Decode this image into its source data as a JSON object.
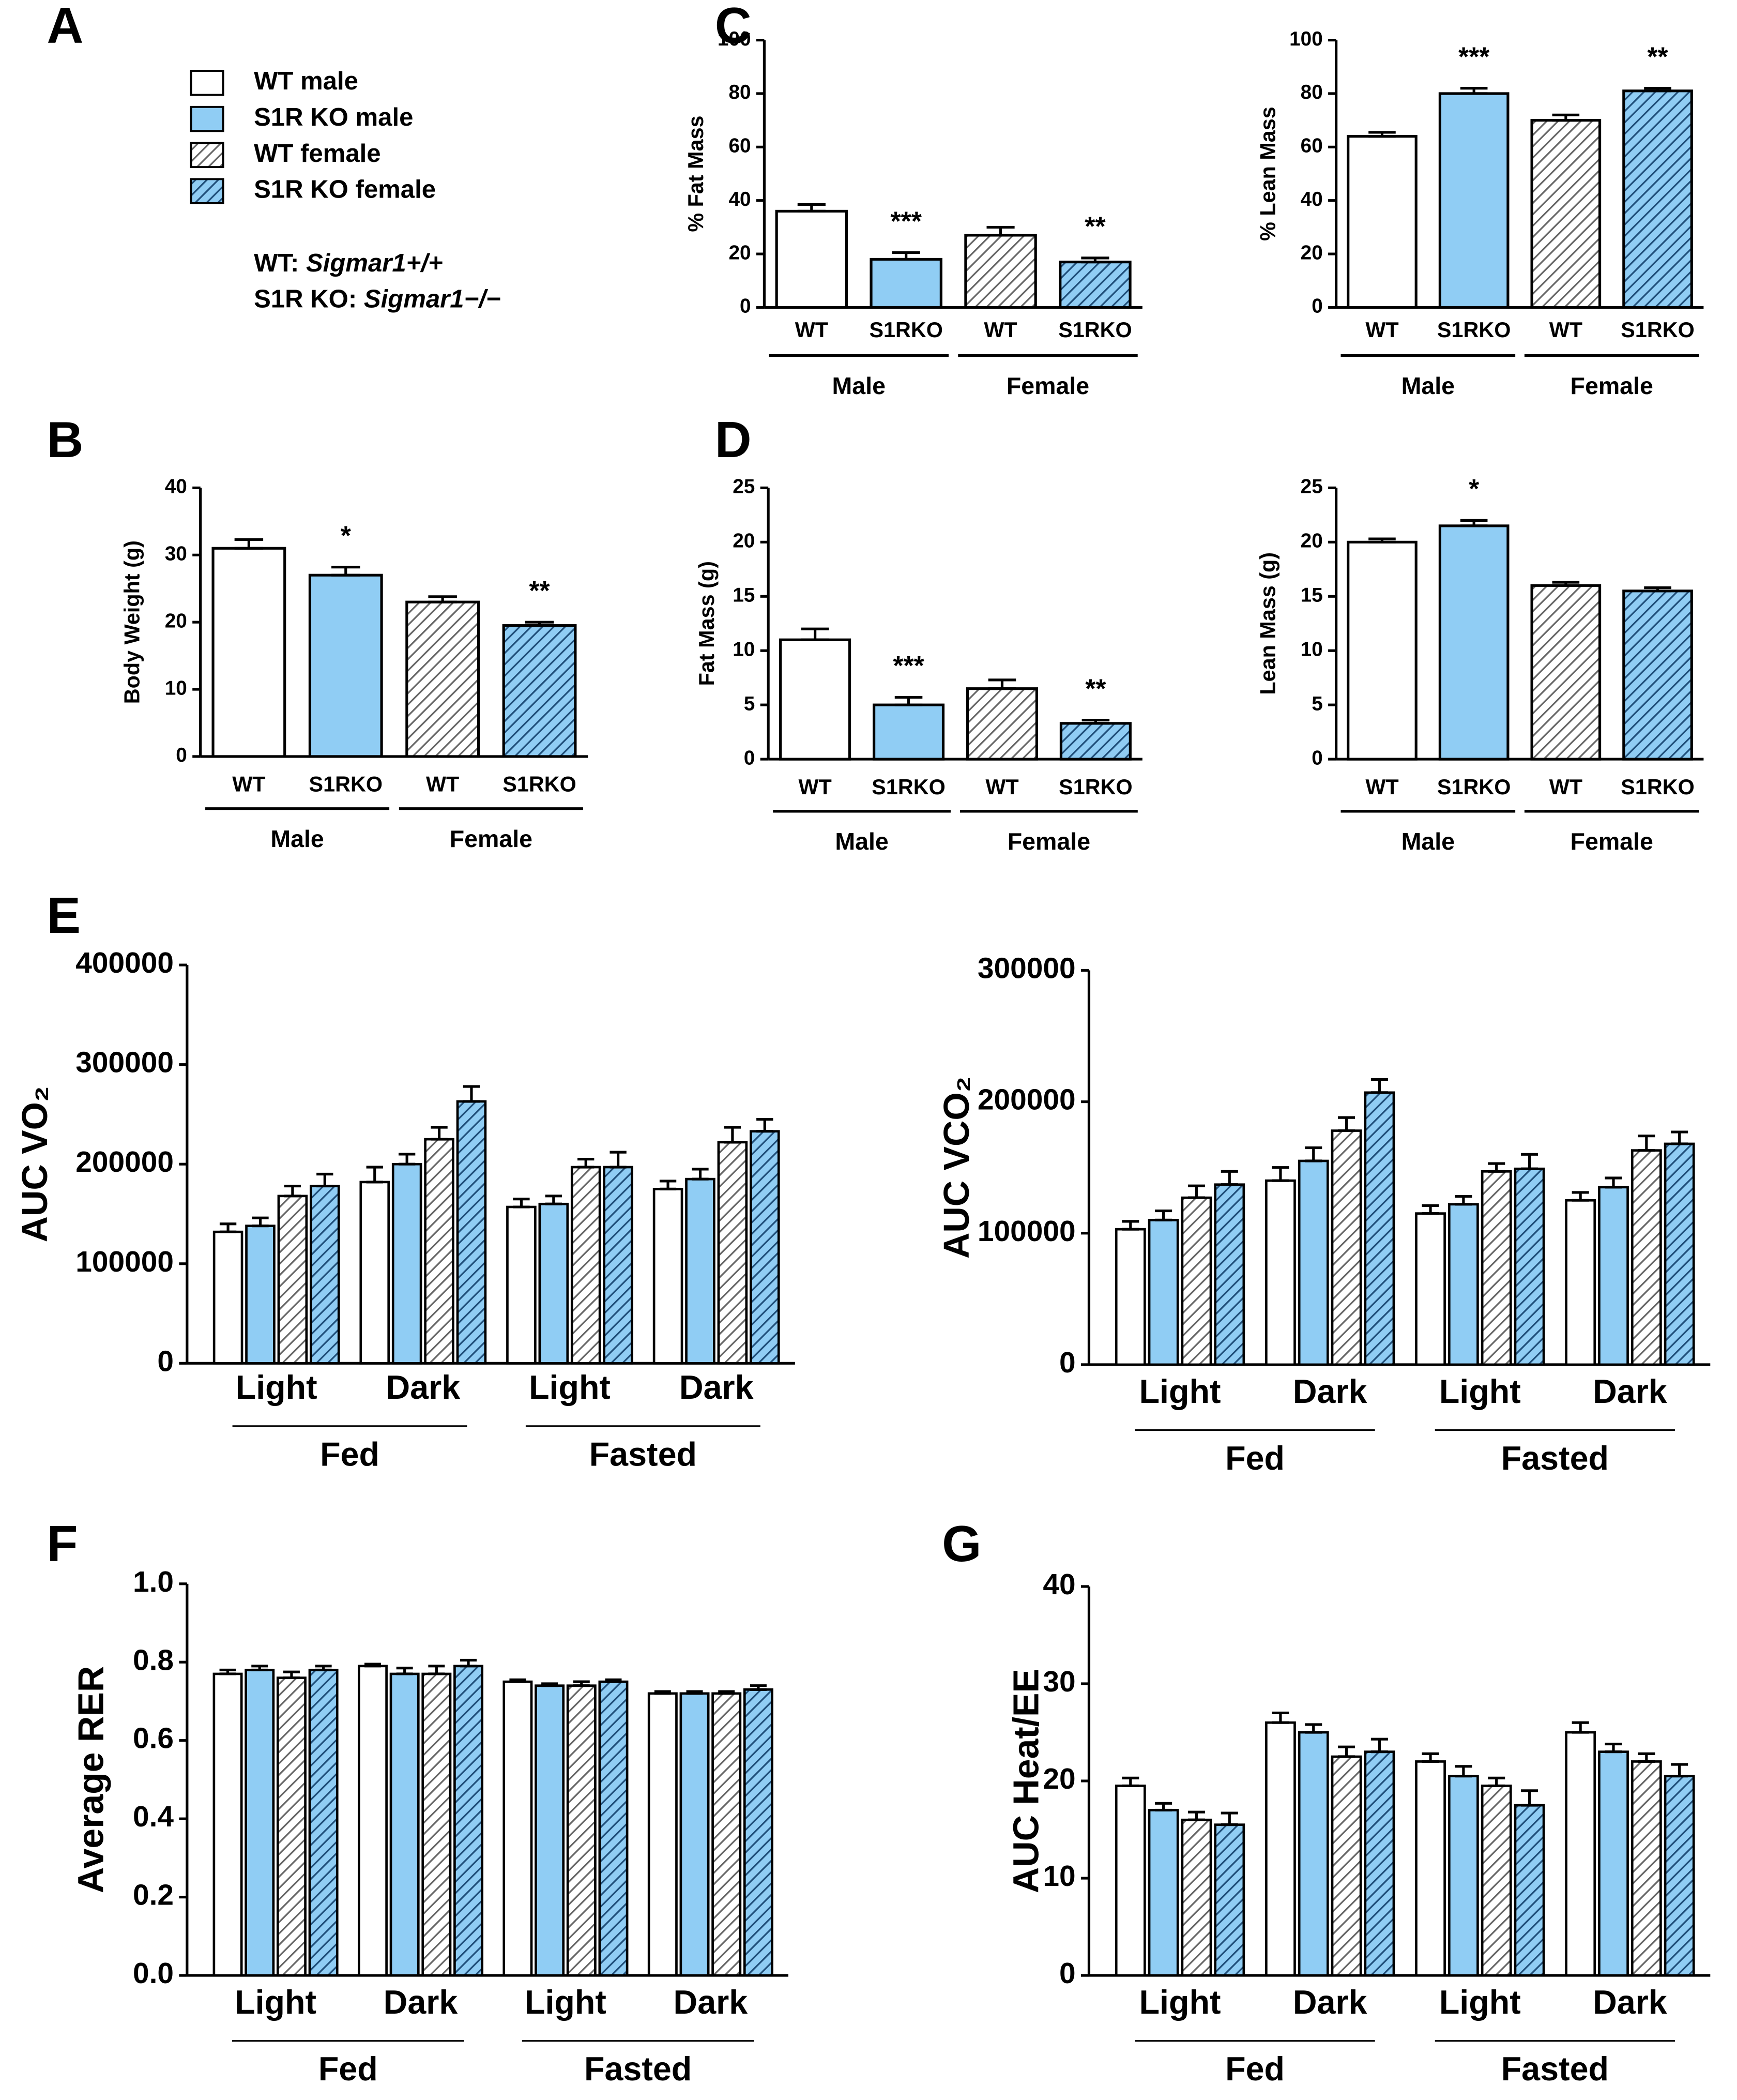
{
  "legend": {
    "panel": "A",
    "series": [
      {
        "name": "WT male",
        "color": "#ffffff"
      },
      {
        "name": "S1R KO male",
        "color": "#90cdf4"
      },
      {
        "name": "WT female",
        "color": "#ffffff",
        "hatch": "#666666"
      },
      {
        "name": "S1R KO female",
        "color": "#90cdf4",
        "hatch": "#1f4e79"
      }
    ],
    "notes": [
      {
        "label": "WT:",
        "gene": "Sigmar1+/+"
      },
      {
        "label": "S1R KO:",
        "gene": "Sigmar1−/−"
      }
    ]
  },
  "chart_data": [
    {
      "type": "bar",
      "panel": "C",
      "y_label": "% Fat Mass",
      "categories": [
        "WT",
        "S1RKO",
        "WT",
        "S1RKO"
      ],
      "groups": [
        "Male",
        "Female"
      ],
      "values": [
        36,
        18,
        27,
        17
      ],
      "errors": [
        2.5,
        2.5,
        3,
        1.5
      ],
      "annotations": [
        null,
        "***",
        null,
        "**"
      ],
      "ylim": [
        0,
        100
      ],
      "yticks": [
        0,
        20,
        40,
        60,
        80,
        100
      ]
    },
    {
      "type": "bar",
      "y_label": "% Lean Mass",
      "categories": [
        "WT",
        "S1RKO",
        "WT",
        "S1RKO"
      ],
      "groups": [
        "Male",
        "Female"
      ],
      "values": [
        64,
        80,
        70,
        81
      ],
      "errors": [
        1.5,
        2,
        2,
        1
      ],
      "annotations": [
        null,
        "***",
        null,
        "**"
      ],
      "ylim": [
        0,
        100
      ],
      "yticks": [
        0,
        20,
        40,
        60,
        80,
        100
      ]
    },
    {
      "type": "bar",
      "panel": "B",
      "y_label": "Body Weight (g)",
      "categories": [
        "WT",
        "S1RKO",
        "WT",
        "S1RKO"
      ],
      "groups": [
        "Male",
        "Female"
      ],
      "values": [
        31,
        27,
        23,
        19.5
      ],
      "errors": [
        1.3,
        1.2,
        0.8,
        0.5
      ],
      "annotations": [
        null,
        "*",
        null,
        "**"
      ],
      "ylim": [
        0,
        40
      ],
      "yticks": [
        0,
        10,
        20,
        30,
        40
      ]
    },
    {
      "type": "bar",
      "panel": "D",
      "y_label": "Fat Mass (g)",
      "categories": [
        "WT",
        "S1RKO",
        "WT",
        "S1RKO"
      ],
      "groups": [
        "Male",
        "Female"
      ],
      "values": [
        11,
        5,
        6.5,
        3.3
      ],
      "errors": [
        1,
        0.7,
        0.8,
        0.3
      ],
      "annotations": [
        null,
        "***",
        null,
        "**"
      ],
      "ylim": [
        0,
        25
      ],
      "yticks": [
        0,
        5,
        10,
        15,
        20,
        25
      ]
    },
    {
      "type": "bar",
      "y_label": "Lean Mass (g)",
      "categories": [
        "WT",
        "S1RKO",
        "WT",
        "S1RKO"
      ],
      "groups": [
        "Male",
        "Female"
      ],
      "values": [
        20,
        21.5,
        16,
        15.5
      ],
      "errors": [
        0.3,
        0.5,
        0.3,
        0.3
      ],
      "annotations": [
        null,
        "*",
        null,
        null
      ],
      "ylim": [
        0,
        25
      ],
      "yticks": [
        0,
        5,
        10,
        15,
        20,
        25
      ]
    },
    {
      "type": "grouped_bar",
      "panel": "E",
      "y_label": "AUC VO₂",
      "categories": [
        "Light",
        "Dark",
        "Light",
        "Dark"
      ],
      "groups": [
        "Fed",
        "Fasted"
      ],
      "series": [
        {
          "values": [
            132000,
            182000,
            157000,
            175000
          ],
          "errors": [
            8000,
            15000,
            8000,
            8000
          ]
        },
        {
          "values": [
            138000,
            200000,
            160000,
            185000
          ],
          "errors": [
            8000,
            10000,
            8000,
            10000
          ]
        },
        {
          "values": [
            168000,
            225000,
            197000,
            222000
          ],
          "errors": [
            10000,
            12000,
            8000,
            15000
          ]
        },
        {
          "values": [
            178000,
            263000,
            197000,
            233000
          ],
          "errors": [
            12000,
            15000,
            15000,
            12000
          ]
        }
      ],
      "ylim": [
        0,
        400000
      ],
      "yticks": [
        0,
        100000,
        200000,
        300000,
        400000
      ]
    },
    {
      "type": "grouped_bar",
      "y_label": "AUC VCO₂",
      "categories": [
        "Light",
        "Dark",
        "Light",
        "Dark"
      ],
      "groups": [
        "Fed",
        "Fasted"
      ],
      "series": [
        {
          "values": [
            103000,
            140000,
            115000,
            125000
          ],
          "errors": [
            6000,
            10000,
            6000,
            6000
          ]
        },
        {
          "values": [
            110000,
            155000,
            122000,
            135000
          ],
          "errors": [
            7000,
            10000,
            6000,
            7000
          ]
        },
        {
          "values": [
            127000,
            178000,
            147000,
            163000
          ],
          "errors": [
            9000,
            10000,
            6000,
            11000
          ]
        },
        {
          "values": [
            137000,
            207000,
            149000,
            168000
          ],
          "errors": [
            10000,
            10000,
            11000,
            9000
          ]
        }
      ],
      "ylim": [
        0,
        300000
      ],
      "yticks": [
        0,
        100000,
        200000,
        300000
      ]
    },
    {
      "type": "grouped_bar",
      "panel": "F",
      "y_label": "Average RER",
      "categories": [
        "Light",
        "Dark",
        "Light",
        "Dark"
      ],
      "groups": [
        "Fed",
        "Fasted"
      ],
      "series": [
        {
          "values": [
            0.77,
            0.79,
            0.75,
            0.72
          ],
          "errors": [
            0.01,
            0.005,
            0.005,
            0.005
          ]
        },
        {
          "values": [
            0.78,
            0.77,
            0.74,
            0.72
          ],
          "errors": [
            0.01,
            0.015,
            0.005,
            0.005
          ]
        },
        {
          "values": [
            0.76,
            0.77,
            0.74,
            0.72
          ],
          "errors": [
            0.015,
            0.02,
            0.01,
            0.005
          ]
        },
        {
          "values": [
            0.78,
            0.79,
            0.75,
            0.73
          ],
          "errors": [
            0.01,
            0.015,
            0.005,
            0.01
          ]
        }
      ],
      "ylim": [
        0,
        1
      ],
      "yticks": [
        {
          "value": 0,
          "label": "0.0"
        },
        0.2,
        0.4,
        0.6,
        0.8,
        {
          "value": 1,
          "label": "1.0"
        }
      ]
    },
    {
      "type": "grouped_bar",
      "panel": "G",
      "y_label": "AUC Heat/EE",
      "categories": [
        "Light",
        "Dark",
        "Light",
        "Dark"
      ],
      "groups": [
        "Fed",
        "Fasted"
      ],
      "series": [
        {
          "values": [
            19.5,
            26,
            22,
            25
          ],
          "errors": [
            0.8,
            1,
            0.8,
            1
          ]
        },
        {
          "values": [
            17,
            25,
            20.5,
            23
          ],
          "errors": [
            0.7,
            0.8,
            1,
            0.8
          ]
        },
        {
          "values": [
            16,
            22.5,
            19.5,
            22
          ],
          "errors": [
            0.8,
            1,
            0.8,
            0.8
          ]
        },
        {
          "values": [
            15.5,
            23,
            17.5,
            20.5
          ],
          "errors": [
            1.2,
            1.3,
            1.5,
            1.2
          ]
        }
      ],
      "ylim": [
        0,
        40
      ],
      "yticks": [
        0,
        10,
        20,
        30,
        40
      ]
    }
  ]
}
